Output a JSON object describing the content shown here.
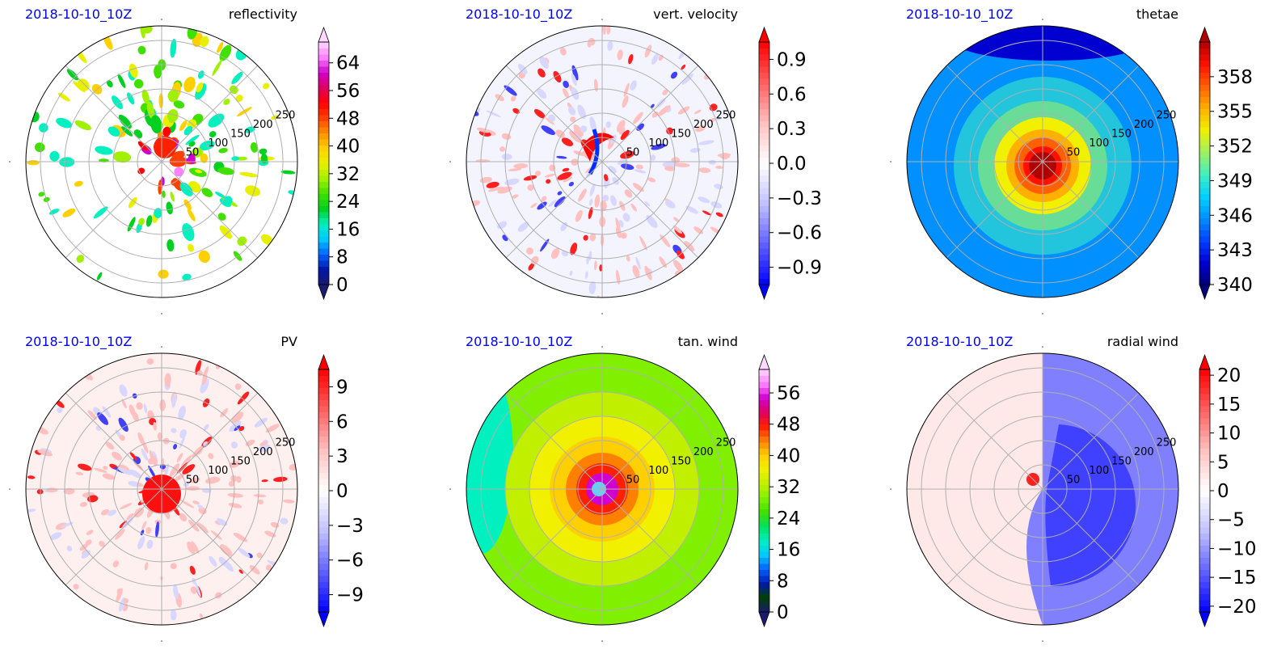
{
  "chart_data": [
    {
      "type": "polar-filled-contour",
      "timestamp": "2018-10-10_10Z",
      "title": "reflectivity",
      "radial_ticks": [
        "50",
        "100",
        "150",
        "200",
        "250"
      ],
      "rmax": 300,
      "colorbar": {
        "ticks": [
          "0",
          "8",
          "16",
          "24",
          "32",
          "40",
          "48",
          "56",
          "64"
        ],
        "tick_values": [
          0,
          8,
          16,
          24,
          32,
          40,
          48,
          56,
          64
        ],
        "vmin": 0,
        "vmax": 70,
        "extend": "both"
      }
    },
    {
      "type": "polar-filled-contour",
      "timestamp": "2018-10-10_10Z",
      "title": "vert. velocity",
      "radial_ticks": [
        "50",
        "100",
        "150",
        "200",
        "250"
      ],
      "rmax": 300,
      "colorbar": {
        "ticks": [
          "−0.9",
          "−0.6",
          "−0.3",
          "0.0",
          "0.3",
          "0.6",
          "0.9"
        ],
        "tick_values": [
          -0.9,
          -0.6,
          -0.3,
          0.0,
          0.3,
          0.6,
          0.9
        ],
        "vmin": -1.05,
        "vmax": 1.05,
        "extend": "both"
      }
    },
    {
      "type": "polar-filled-contour",
      "timestamp": "2018-10-10_10Z",
      "title": "thetae",
      "radial_ticks": [
        "50",
        "100",
        "150",
        "200",
        "250"
      ],
      "rmax": 300,
      "colorbar": {
        "ticks": [
          "340",
          "343",
          "346",
          "349",
          "352",
          "355",
          "358"
        ],
        "tick_values": [
          340,
          343,
          346,
          349,
          352,
          355,
          358
        ],
        "vmin": 340,
        "vmax": 361,
        "extend": "both"
      }
    },
    {
      "type": "polar-filled-contour",
      "timestamp": "2018-10-10_10Z",
      "title": "PV",
      "radial_ticks": [
        "50",
        "100",
        "150",
        "200",
        "250"
      ],
      "rmax": 300,
      "colorbar": {
        "ticks": [
          "−9",
          "−6",
          "−3",
          "0",
          "3",
          "6",
          "9"
        ],
        "tick_values": [
          -9,
          -6,
          -3,
          0,
          3,
          6,
          9
        ],
        "vmin": -10.5,
        "vmax": 10.5,
        "extend": "both"
      }
    },
    {
      "type": "polar-filled-contour",
      "timestamp": "2018-10-10_10Z",
      "title": "tan. wind",
      "radial_ticks": [
        "50",
        "100",
        "150",
        "200",
        "250"
      ],
      "rmax": 300,
      "colorbar": {
        "ticks": [
          "0",
          "8",
          "16",
          "24",
          "32",
          "40",
          "48",
          "56"
        ],
        "tick_values": [
          0,
          8,
          16,
          24,
          32,
          40,
          48,
          56
        ],
        "vmin": 0,
        "vmax": 62,
        "extend": "both"
      }
    },
    {
      "type": "polar-filled-contour",
      "timestamp": "2018-10-10_10Z",
      "title": "radial wind",
      "radial_ticks": [
        "50",
        "100",
        "150",
        "200",
        "250"
      ],
      "rmax": 300,
      "colorbar": {
        "ticks": [
          "−20",
          "−15",
          "−10",
          "−5",
          "0",
          "5",
          "10",
          "15",
          "20"
        ],
        "tick_values": [
          -20,
          -15,
          -10,
          -5,
          0,
          5,
          10,
          15,
          20
        ],
        "vmin": -21,
        "vmax": 21,
        "extend": "both"
      }
    }
  ],
  "colors": {
    "timestamp": "#0000ff",
    "grid": "#b0b0b0",
    "reflectivity_scale": [
      "#1a1a6e",
      "#0018a8",
      "#0060ff",
      "#00c8ff",
      "#00f0c0",
      "#00d020",
      "#40e000",
      "#a0f000",
      "#e8f000",
      "#ffd000",
      "#ff9000",
      "#ff4000",
      "#ff0000",
      "#e00060",
      "#d000d0",
      "#ff80ff",
      "#ffd8ff"
    ],
    "thetae_scale": [
      "#00007a",
      "#0000d0",
      "#0040ff",
      "#0090ff",
      "#00d0ff",
      "#40f0c0",
      "#a0f060",
      "#f0f000",
      "#ffb000",
      "#ff6000",
      "#ff1000",
      "#b00000"
    ],
    "tanwind_scale": [
      "#1a1a6e",
      "#004000",
      "#0018a8",
      "#0060ff",
      "#00c8ff",
      "#00f0c0",
      "#00e060",
      "#40e000",
      "#80f000",
      "#c0f000",
      "#f0f000",
      "#ffd000",
      "#ff8000",
      "#ff2000",
      "#e00060",
      "#d000d0",
      "#ff80ff",
      "#ffd8ff"
    ],
    "diverging_scale": [
      "#0000ff",
      "#3030ff",
      "#6060ff",
      "#9090ff",
      "#c0c0ff",
      "#e0e0ff",
      "#ffffff",
      "#ffe0e0",
      "#ffc0c0",
      "#ff9090",
      "#ff6060",
      "#ff3030",
      "#ff0000"
    ]
  }
}
